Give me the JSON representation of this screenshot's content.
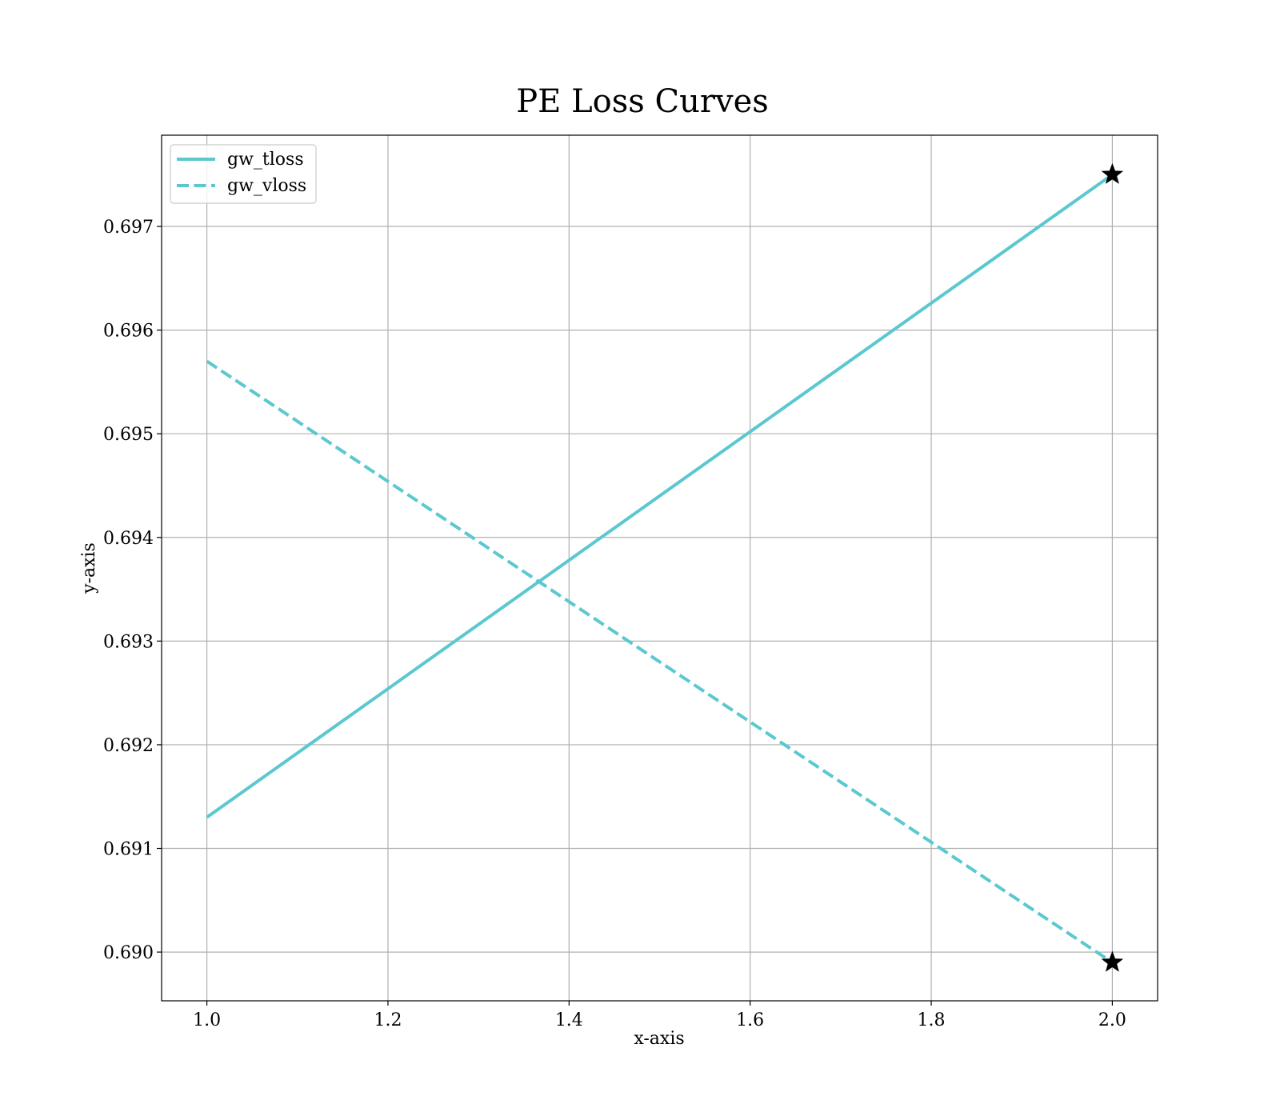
{
  "chart_data": {
    "type": "line",
    "title": "PE Loss Curves",
    "xlabel": "x-axis",
    "ylabel": "y-axis",
    "xlim": [
      0.95,
      2.05
    ],
    "ylim": [
      0.68953,
      0.69788
    ],
    "xticks": [
      1.0,
      1.2,
      1.4,
      1.6,
      1.8,
      2.0
    ],
    "xtick_labels": [
      "1.0",
      "1.2",
      "1.4",
      "1.6",
      "1.8",
      "2.0"
    ],
    "yticks": [
      0.69,
      0.691,
      0.692,
      0.693,
      0.694,
      0.695,
      0.696,
      0.697
    ],
    "ytick_labels": [
      "0.690",
      "0.691",
      "0.692",
      "0.693",
      "0.694",
      "0.695",
      "0.696",
      "0.697"
    ],
    "grid": true,
    "legend_position": "upper-left",
    "series": [
      {
        "name": "gw_tloss",
        "x": [
          1.0,
          2.0
        ],
        "y": [
          0.6913,
          0.6975
        ],
        "color": "#5bc8cf",
        "linestyle": "solid",
        "end_marker": "star"
      },
      {
        "name": "gw_vloss",
        "x": [
          1.0,
          2.0
        ],
        "y": [
          0.6957,
          0.6899
        ],
        "color": "#5bc8cf",
        "linestyle": "dashed",
        "end_marker": "star"
      }
    ],
    "marker_color": "#000000"
  }
}
